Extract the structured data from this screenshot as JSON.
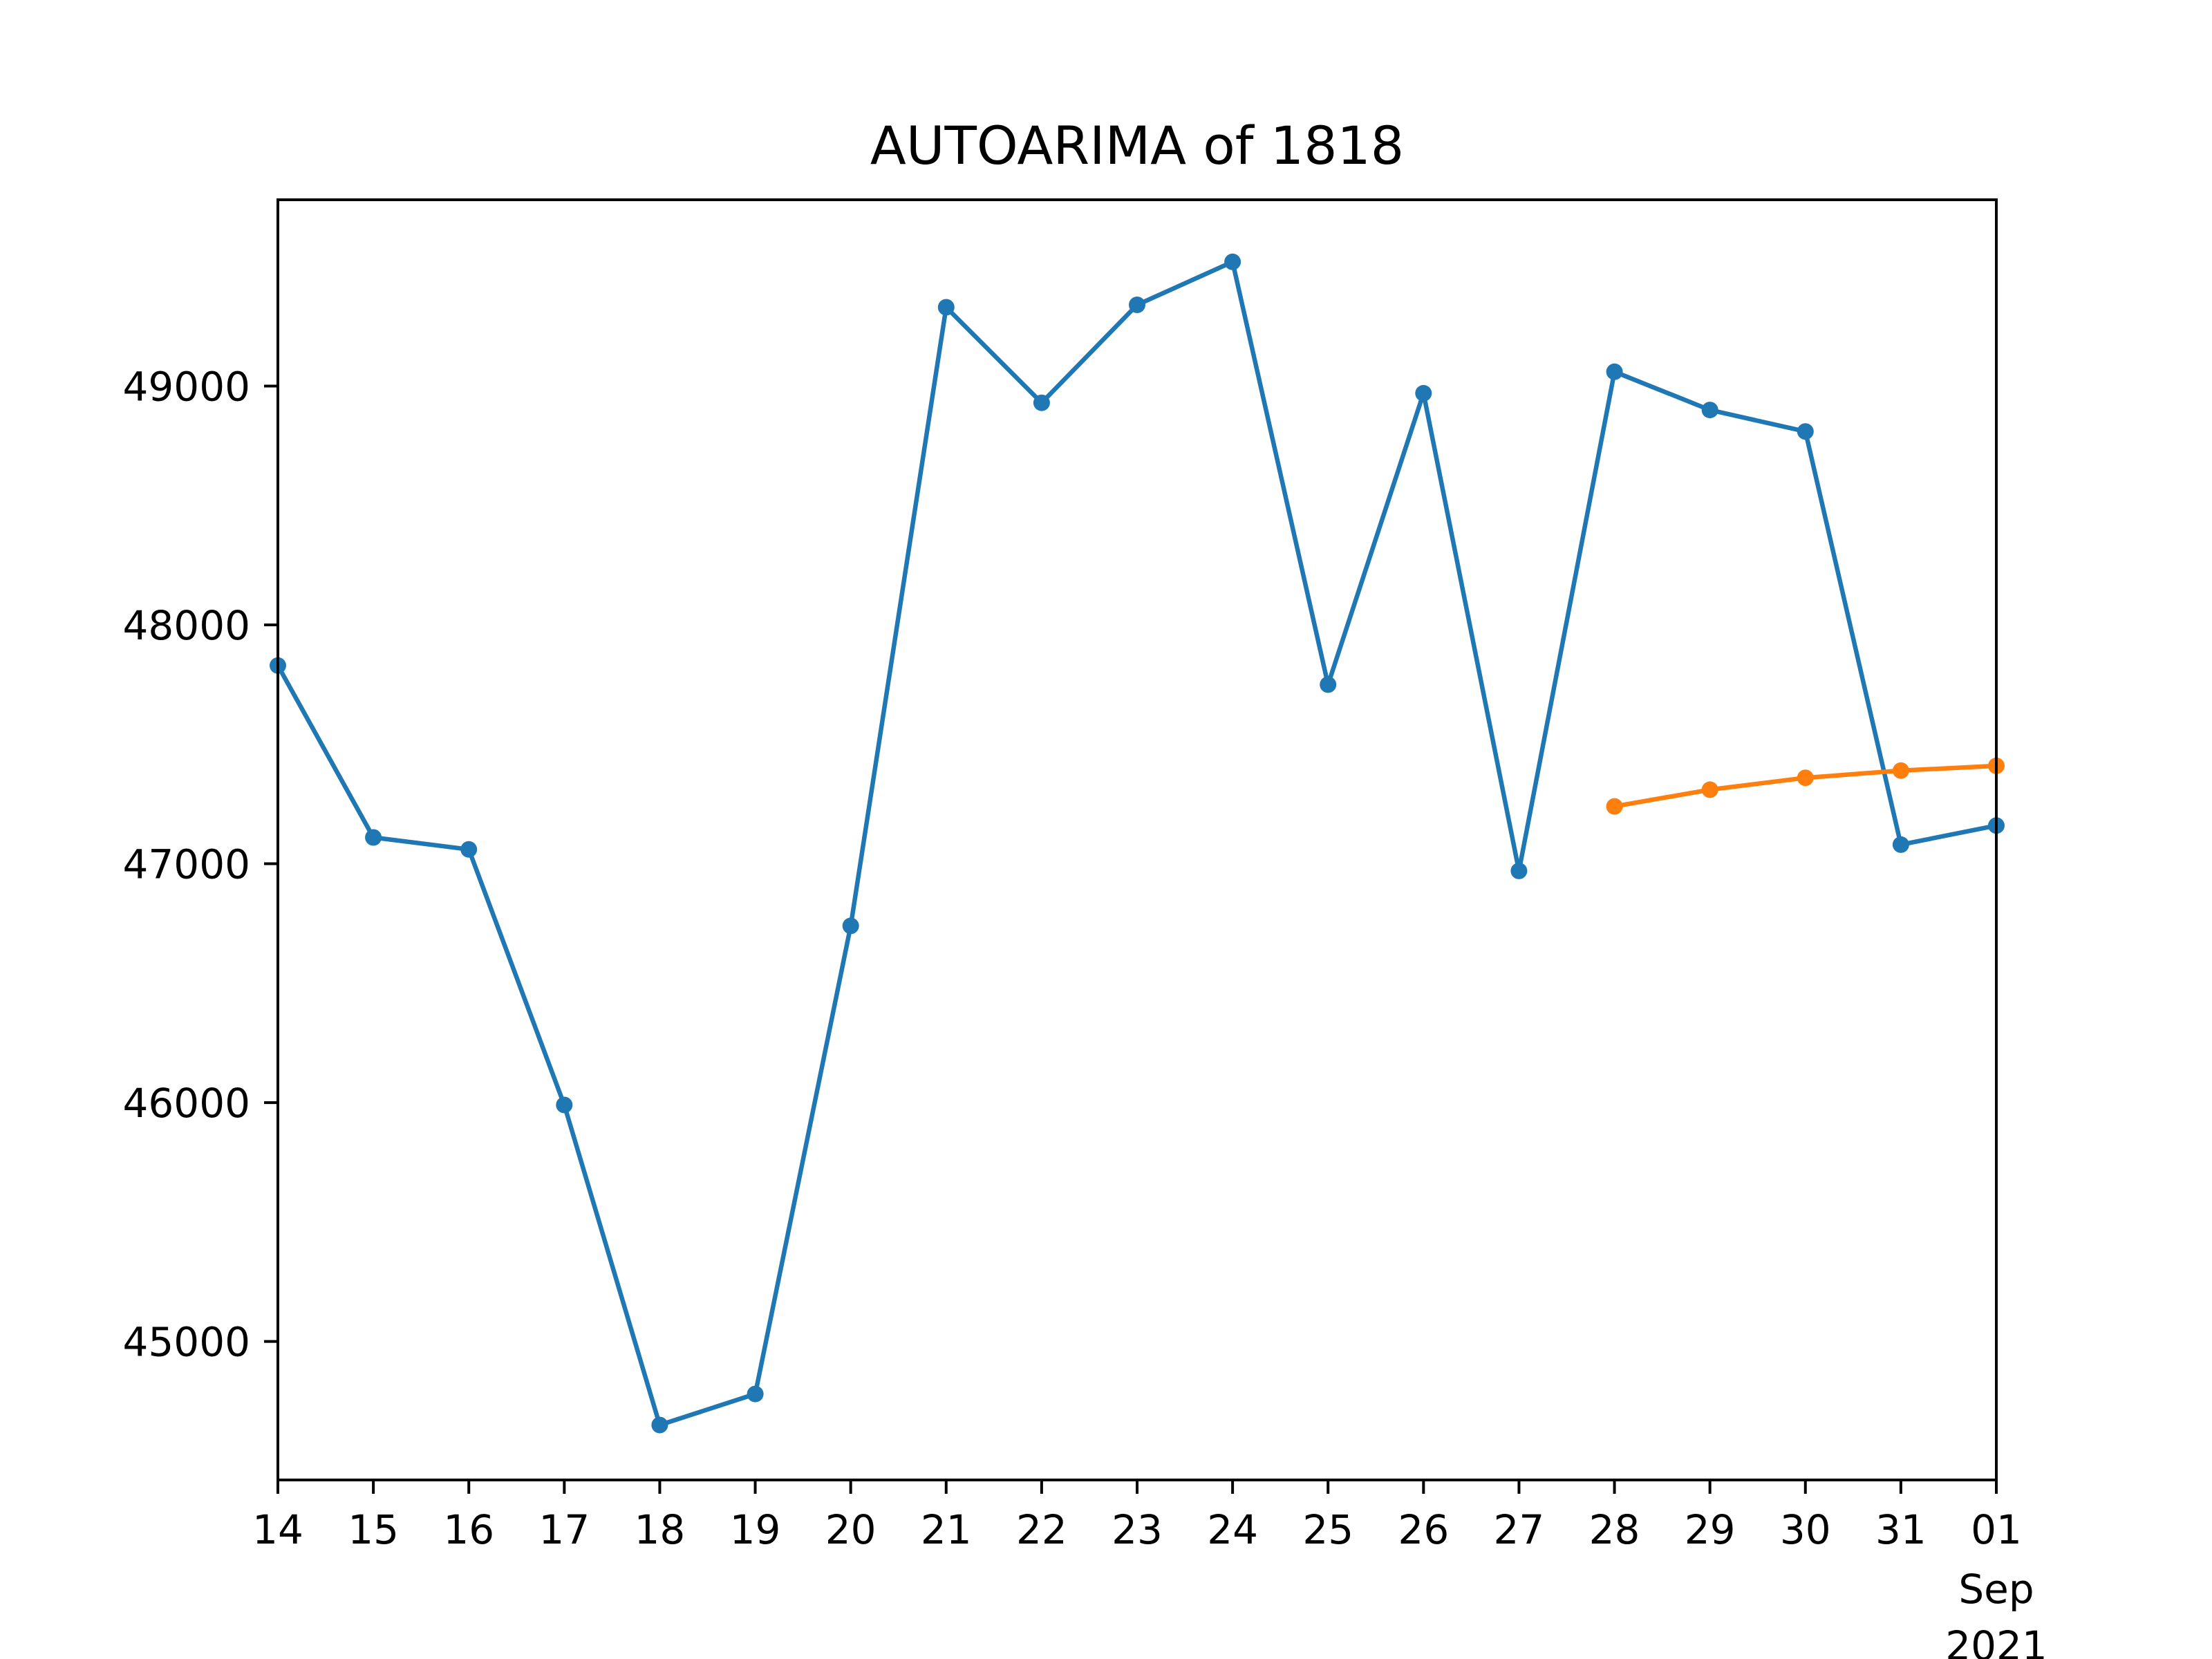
{
  "chart_data": {
    "type": "line",
    "title": "AUTOARIMA of 1818",
    "xlabel": "",
    "ylabel": "",
    "x_tick_labels": [
      "14",
      "15",
      "16",
      "17",
      "18",
      "19",
      "20",
      "21",
      "22",
      "23",
      "24",
      "25",
      "26",
      "27",
      "28",
      "29",
      "30",
      "31",
      "01"
    ],
    "x_secondary_label": [
      "Sep",
      "2021"
    ],
    "y_ticks": [
      45000,
      46000,
      47000,
      48000,
      49000
    ],
    "y_tick_labels": [
      "45000",
      "46000",
      "47000",
      "48000",
      "49000"
    ],
    "ylim": [
      44420,
      49780
    ],
    "grid": false,
    "legend": "none",
    "series": [
      {
        "color": "#1f77b4",
        "x": [
          "2021-08-14",
          "2021-08-15",
          "2021-08-16",
          "2021-08-17",
          "2021-08-18",
          "2021-08-19",
          "2021-08-20",
          "2021-08-21",
          "2021-08-22",
          "2021-08-23",
          "2021-08-24",
          "2021-08-25",
          "2021-08-26",
          "2021-08-27",
          "2021-08-28",
          "2021-08-29",
          "2021-08-30",
          "2021-08-31",
          "2021-09-01"
        ],
        "values": [
          47830,
          47110,
          47060,
          45990,
          44650,
          44780,
          46740,
          49330,
          48930,
          49340,
          49520,
          47750,
          48970,
          46970,
          49060,
          48900,
          48810,
          47080,
          47160
        ]
      },
      {
        "color": "#ff7f0e",
        "x": [
          "2021-08-28",
          "2021-08-29",
          "2021-08-30",
          "2021-08-31",
          "2021-09-01"
        ],
        "values": [
          47240,
          47310,
          47360,
          47390,
          47410
        ]
      }
    ]
  }
}
